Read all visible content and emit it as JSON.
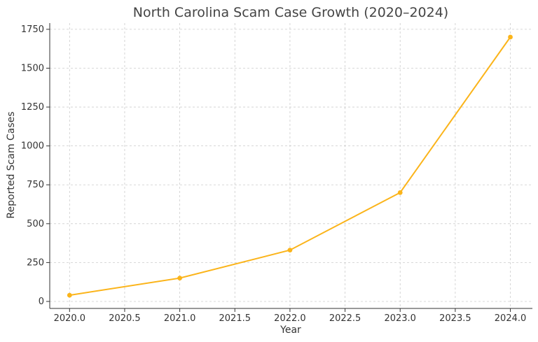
{
  "chart_data": {
    "type": "line",
    "title": "North Carolina Scam Case Growth (2020–2024)",
    "xlabel": "Year",
    "ylabel": "Reported Scam Cases",
    "x": [
      2020.0,
      2021.0,
      2022.0,
      2023.0,
      2024.0
    ],
    "series": [
      {
        "values": [
          40,
          150,
          330,
          700,
          1700
        ],
        "color": "#FBB41A"
      }
    ],
    "xlim": [
      2019.82,
      2024.2
    ],
    "ylim": [
      -45,
      1790
    ],
    "xticks": [
      2020.0,
      2020.5,
      2021.0,
      2021.5,
      2022.0,
      2022.5,
      2023.0,
      2023.5,
      2024.0
    ],
    "xtick_labels": [
      "2020.0",
      "2020.5",
      "2021.0",
      "2021.5",
      "2022.0",
      "2022.5",
      "2023.0",
      "2023.5",
      "2024.0"
    ],
    "yticks": [
      0,
      250,
      500,
      750,
      1000,
      1250,
      1500,
      1750
    ],
    "ytick_labels": [
      "0",
      "250",
      "500",
      "750",
      "1000",
      "1250",
      "1500",
      "1750"
    ],
    "grid": true,
    "legend": "none"
  }
}
